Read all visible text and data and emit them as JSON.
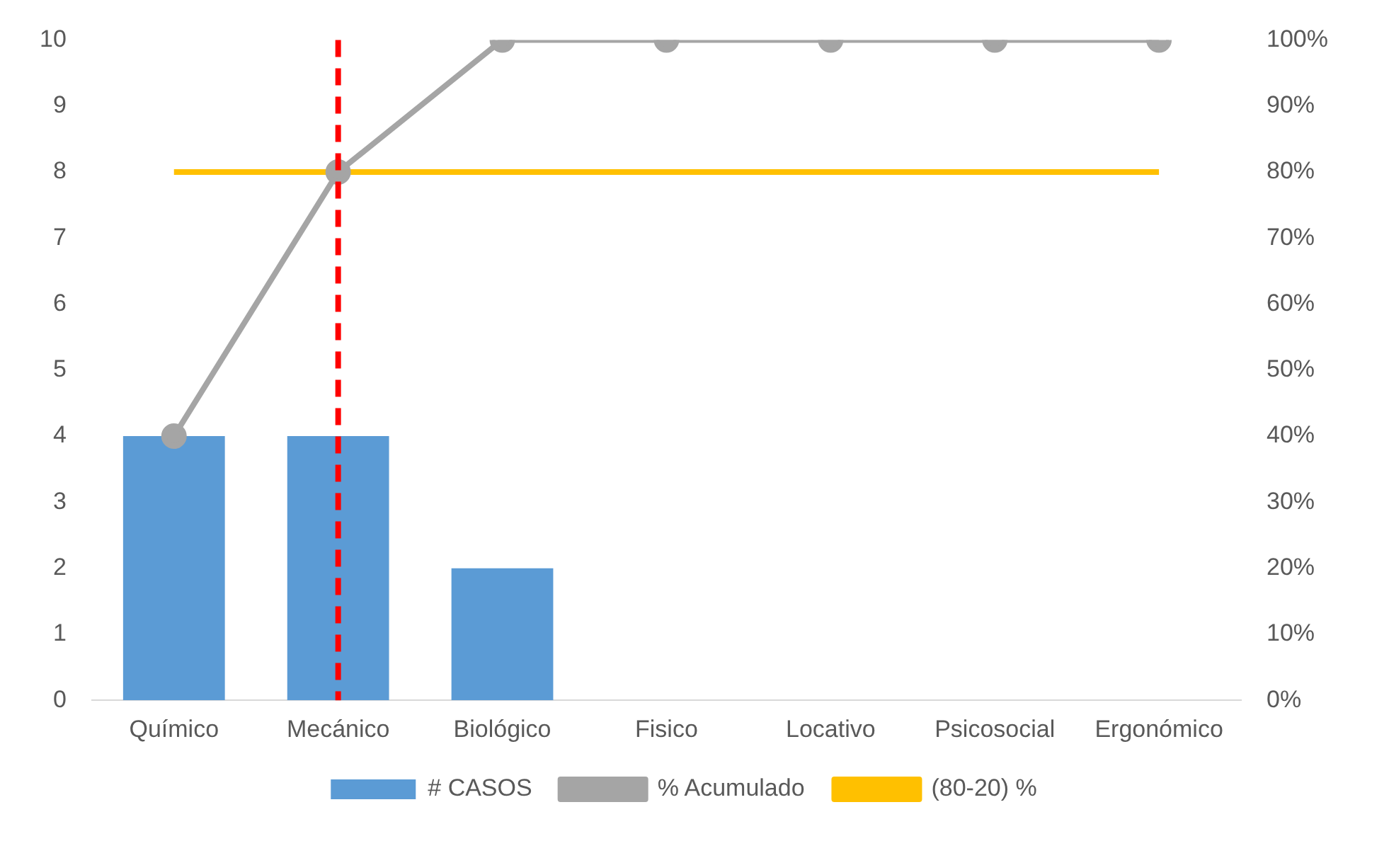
{
  "chart_data": {
    "type": "bar",
    "categories": [
      "Químico",
      "Mecánico",
      "Biológico",
      "Fisico",
      "Locativo",
      "Psicosocial",
      "Ergonómico"
    ],
    "series": [
      {
        "name": "# CASOS",
        "color": "#5b9bd5",
        "values": [
          4,
          4,
          2,
          0,
          0,
          0,
          0
        ]
      },
      {
        "name": "% Acumulado",
        "type": "line",
        "axis": "y2",
        "marker": "circle",
        "color": "#a5a5a5",
        "values": [
          40,
          80,
          100,
          100,
          100,
          100,
          100
        ]
      },
      {
        "name": "(80-20) %",
        "type": "line",
        "axis": "y2",
        "marker": "none",
        "color": "#ffc000",
        "values": [
          80,
          80,
          80,
          80,
          80,
          80,
          80
        ]
      }
    ],
    "ylim": [
      0,
      10
    ],
    "yticks": [
      0,
      1,
      2,
      3,
      4,
      5,
      6,
      7,
      8,
      9,
      10
    ],
    "y2lim": [
      0,
      100
    ],
    "y2ticks": [
      {
        "value": 0,
        "label": "0%"
      },
      {
        "value": 10,
        "label": "10%"
      },
      {
        "value": 20,
        "label": "20%"
      },
      {
        "value": 30,
        "label": "30%"
      },
      {
        "value": 40,
        "label": "40%"
      },
      {
        "value": 50,
        "label": "50%"
      },
      {
        "value": 60,
        "label": "60%"
      },
      {
        "value": 70,
        "label": "70%"
      },
      {
        "value": 80,
        "label": "80%"
      },
      {
        "value": 90,
        "label": "90%"
      },
      {
        "value": 100,
        "label": "100%"
      }
    ],
    "ref_lines": [
      {
        "axis": "x",
        "value": "Mecánico",
        "color": "#ff0000",
        "line_style": "dashed"
      }
    ],
    "legend": "bottom"
  }
}
